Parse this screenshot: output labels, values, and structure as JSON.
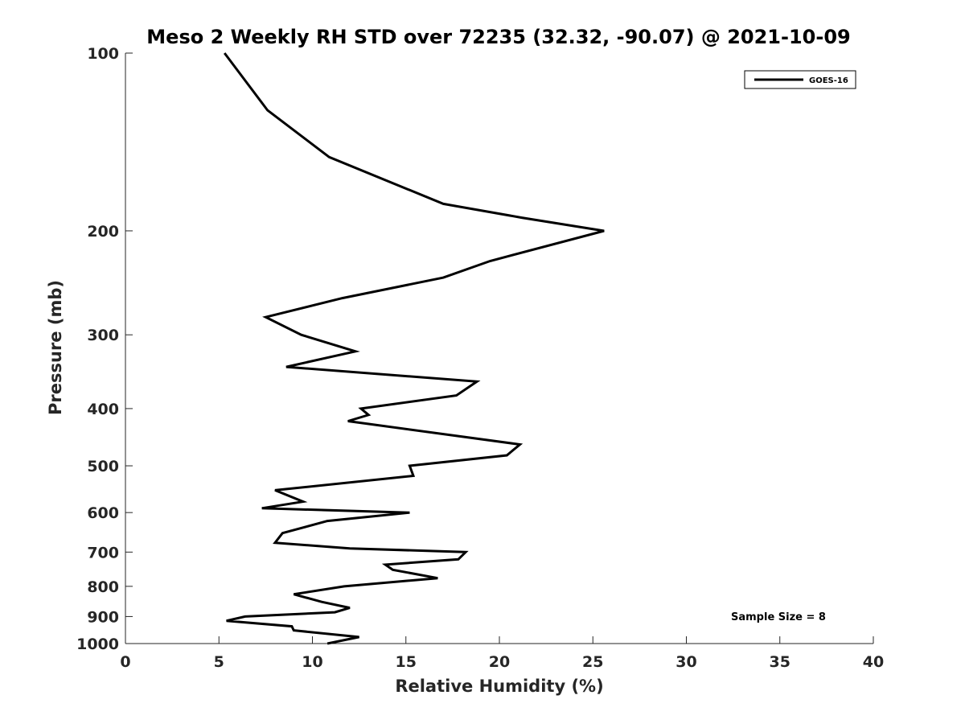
{
  "chart_data": {
    "type": "line",
    "title": "Meso 2 Weekly RH STD over 72235 (32.32, -90.07) @ 2021-10-09",
    "xlabel": "Relative Humidity (%)",
    "ylabel": "Pressure (mb)",
    "xlim": [
      0,
      40
    ],
    "ylim": [
      100,
      1000
    ],
    "yscale": "log",
    "yreversed": true,
    "x_ticks": [
      0,
      5,
      10,
      15,
      20,
      25,
      30,
      35,
      40
    ],
    "y_ticks": [
      100,
      200,
      300,
      400,
      500,
      600,
      700,
      800,
      900,
      1000
    ],
    "legend": {
      "position": "top-right",
      "entries": [
        "GOES-16"
      ]
    },
    "annotation": "Sample Size = 8",
    "series": [
      {
        "name": "GOES-16",
        "color": "#000000",
        "points": [
          [
            5.3,
            100
          ],
          [
            7.6,
            125
          ],
          [
            10.9,
            150
          ],
          [
            17.0,
            180
          ],
          [
            21.2,
            190
          ],
          [
            25.6,
            200
          ],
          [
            19.5,
            225
          ],
          [
            17.0,
            240
          ],
          [
            11.6,
            260
          ],
          [
            7.5,
            280
          ],
          [
            9.4,
            300
          ],
          [
            12.3,
            320
          ],
          [
            8.6,
            340
          ],
          [
            18.8,
            360
          ],
          [
            17.7,
            380
          ],
          [
            12.6,
            400
          ],
          [
            13.0,
            410
          ],
          [
            11.9,
            420
          ],
          [
            21.1,
            460
          ],
          [
            20.4,
            480
          ],
          [
            15.2,
            500
          ],
          [
            15.4,
            520
          ],
          [
            8.0,
            550
          ],
          [
            9.5,
            575
          ],
          [
            7.3,
            590
          ],
          [
            15.2,
            600
          ],
          [
            10.8,
            620
          ],
          [
            8.4,
            650
          ],
          [
            8.0,
            675
          ],
          [
            12.0,
            690
          ],
          [
            18.2,
            700
          ],
          [
            17.8,
            720
          ],
          [
            13.9,
            735
          ],
          [
            14.3,
            750
          ],
          [
            16.7,
            775
          ],
          [
            11.7,
            800
          ],
          [
            9.0,
            825
          ],
          [
            10.5,
            850
          ],
          [
            12.0,
            870
          ],
          [
            11.2,
            885
          ],
          [
            6.4,
            900
          ],
          [
            5.4,
            915
          ],
          [
            8.9,
            935
          ],
          [
            9.0,
            950
          ],
          [
            12.5,
            975
          ],
          [
            10.8,
            1000
          ]
        ]
      }
    ]
  }
}
